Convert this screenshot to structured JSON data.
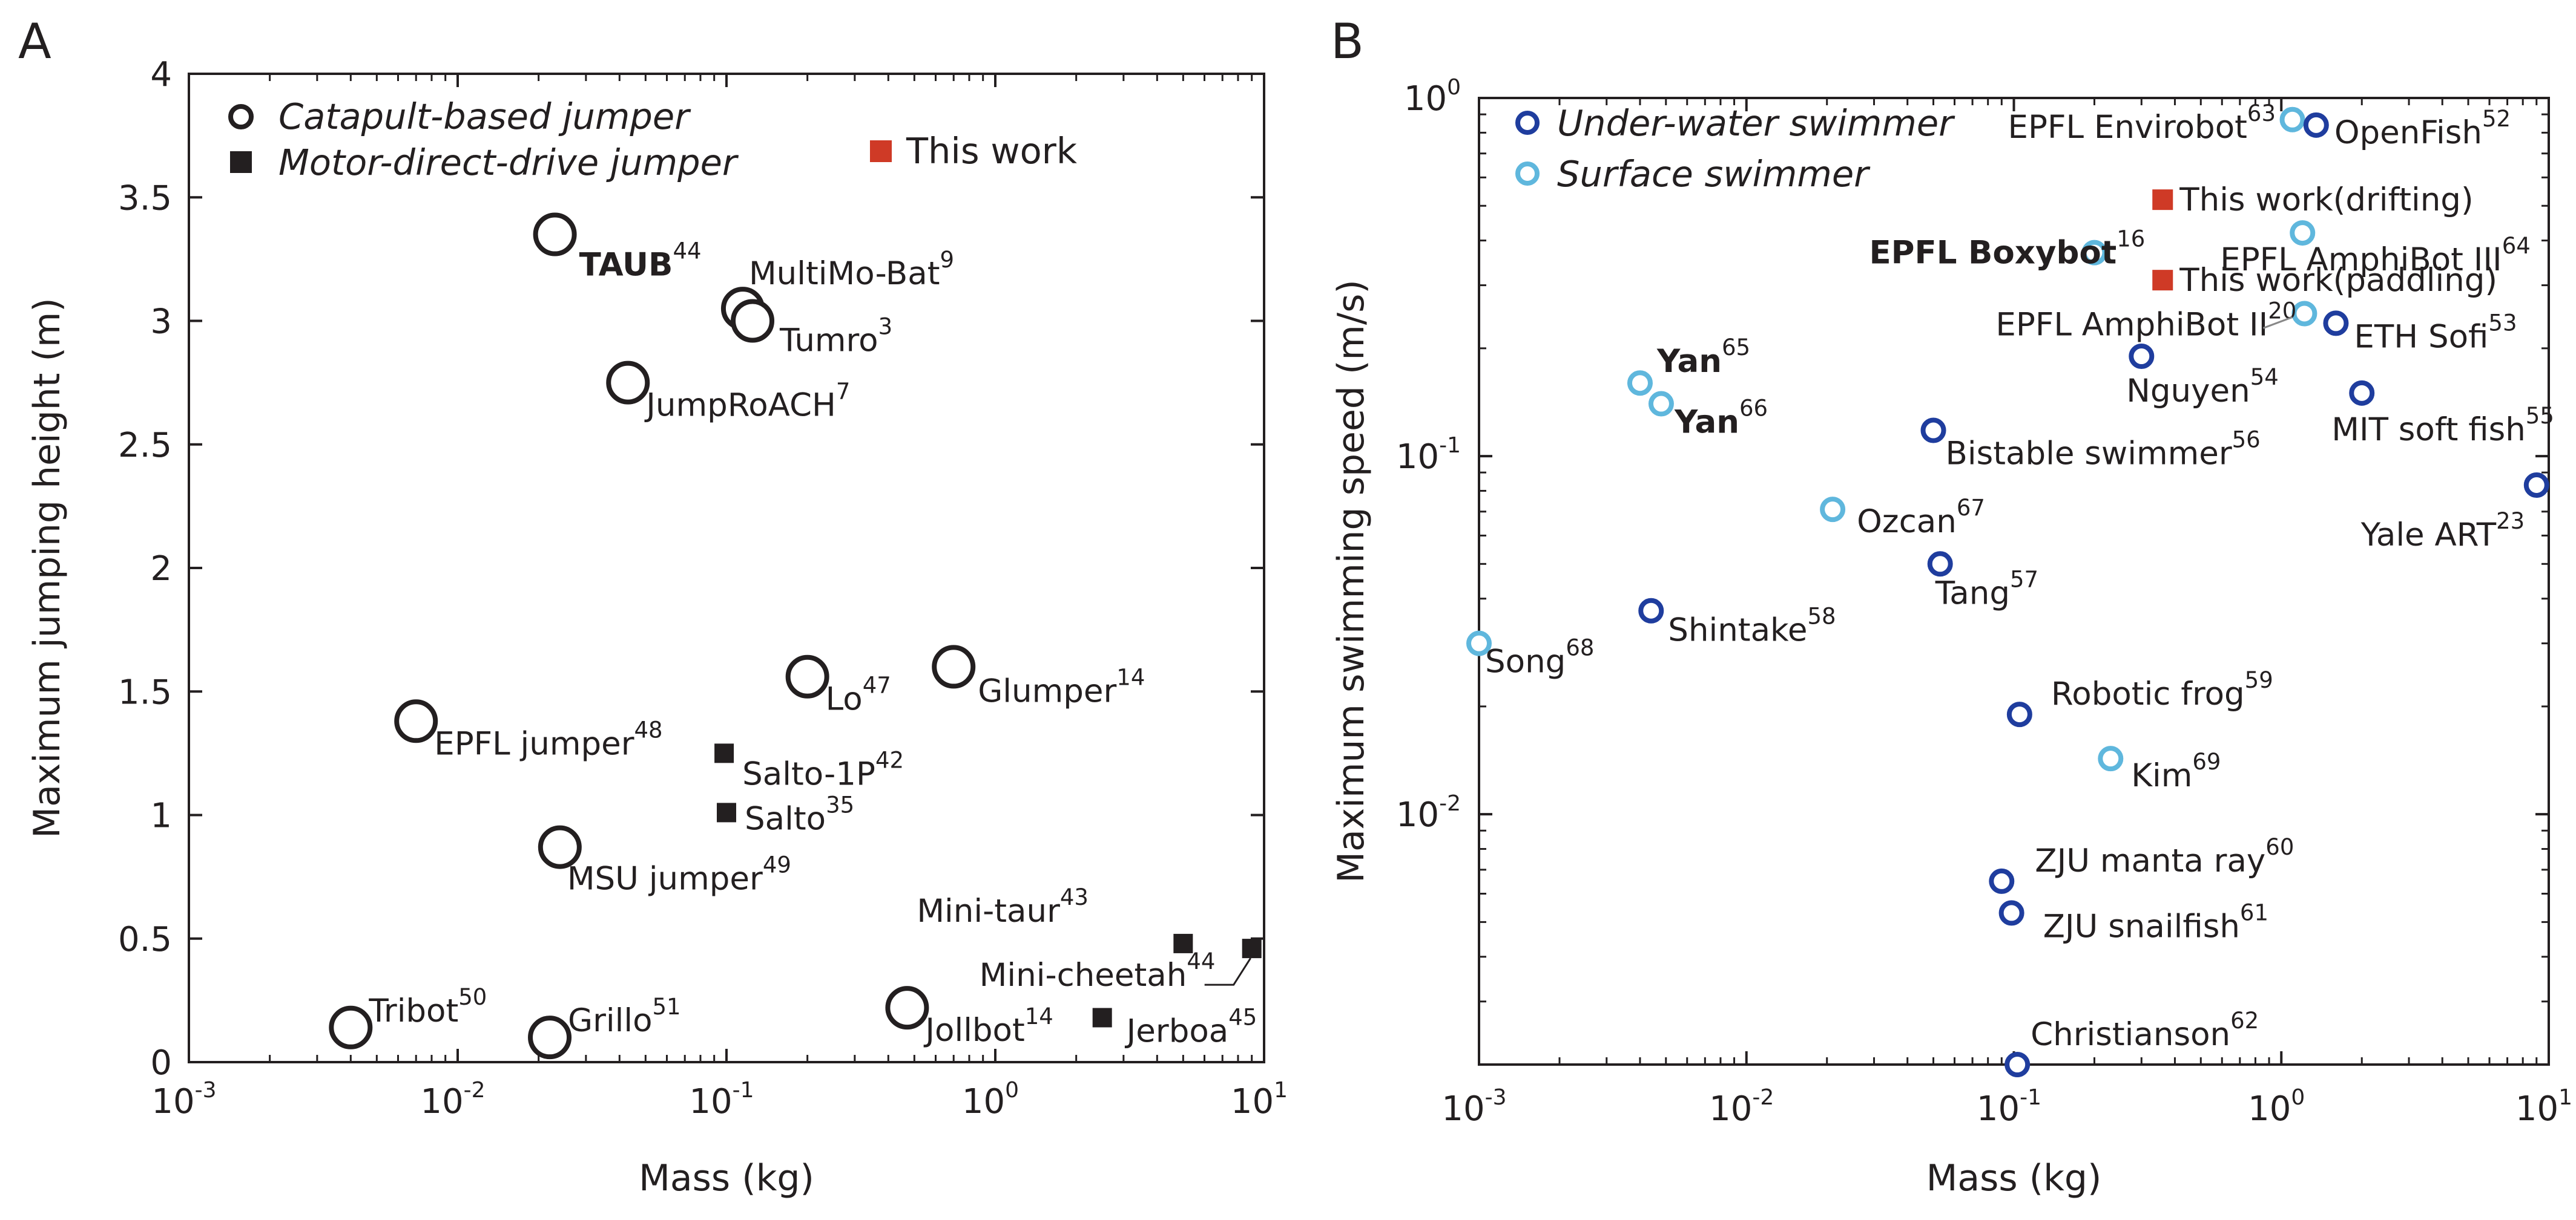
{
  "colors": {
    "axis": "#231f20",
    "catapult": "#231f20",
    "motor": "#231f20",
    "this_work": "#cf3a26",
    "underwater": "#1f3d9e",
    "surface": "#5fb7dd"
  },
  "chart_data": [
    {
      "panel": "A",
      "type": "scatter",
      "xscale": "log",
      "xlabel": "Mass (kg)",
      "ylabel": "Maximum jumping height (m)",
      "xlim": [
        0.001,
        10
      ],
      "ylim": [
        0,
        4
      ],
      "x_ticks": [
        {
          "value": 0.001,
          "base": "10",
          "exp": "-3"
        },
        {
          "value": 0.01,
          "base": "10",
          "exp": "-2"
        },
        {
          "value": 0.1,
          "base": "10",
          "exp": "-1"
        },
        {
          "value": 1,
          "base": "10",
          "exp": "0"
        },
        {
          "value": 10,
          "base": "10",
          "exp": "1"
        }
      ],
      "y_ticks": [
        {
          "value": 0,
          "label": "0"
        },
        {
          "value": 0.5,
          "label": "0.5"
        },
        {
          "value": 1,
          "label": "1"
        },
        {
          "value": 1.5,
          "label": "1.5"
        },
        {
          "value": 2,
          "label": "2"
        },
        {
          "value": 2.5,
          "label": "2.5"
        },
        {
          "value": 3,
          "label": "3"
        },
        {
          "value": 3.5,
          "label": "3.5"
        },
        {
          "value": 4,
          "label": "4"
        }
      ],
      "legend": [
        {
          "label": "Catapult-based jumper",
          "marker": "circle",
          "series": "catapult"
        },
        {
          "label": "Motor-direct-drive jumper",
          "marker": "square",
          "series": "motor"
        },
        {
          "label": "This work",
          "marker": "square",
          "series": "this_work"
        }
      ],
      "points": [
        {
          "name": "TAUB",
          "ref": "44",
          "x": 0.023,
          "y": 3.35,
          "series": "catapult",
          "bold": true
        },
        {
          "name": "MultiMo-Bat",
          "ref": "9",
          "x": 0.115,
          "y": 3.05,
          "series": "catapult"
        },
        {
          "name": "Tumro",
          "ref": "3",
          "x": 0.125,
          "y": 3.0,
          "series": "catapult"
        },
        {
          "name": "JumpRoACH",
          "ref": "7",
          "x": 0.043,
          "y": 2.75,
          "series": "catapult"
        },
        {
          "name": "Lo",
          "ref": "47",
          "x": 0.2,
          "y": 1.56,
          "series": "catapult"
        },
        {
          "name": "Glumper",
          "ref": "14",
          "x": 0.7,
          "y": 1.6,
          "series": "catapult"
        },
        {
          "name": "EPFL jumper",
          "ref": "48",
          "x": 0.007,
          "y": 1.38,
          "series": "catapult"
        },
        {
          "name": "MSU jumper",
          "ref": "49",
          "x": 0.024,
          "y": 0.87,
          "series": "catapult"
        },
        {
          "name": "Tribot",
          "ref": "50",
          "x": 0.004,
          "y": 0.14,
          "series": "catapult"
        },
        {
          "name": "Grillo",
          "ref": "51",
          "x": 0.022,
          "y": 0.1,
          "series": "catapult"
        },
        {
          "name": "Jollbot",
          "ref": "14",
          "x": 0.47,
          "y": 0.22,
          "series": "catapult"
        },
        {
          "name": "Salto-1P",
          "ref": "42",
          "x": 0.098,
          "y": 1.25,
          "series": "motor"
        },
        {
          "name": "Salto",
          "ref": "35",
          "x": 0.1,
          "y": 1.01,
          "series": "motor"
        },
        {
          "name": "Mini-taur",
          "ref": "43",
          "x": 5.0,
          "y": 0.48,
          "series": "motor"
        },
        {
          "name": "Mini-cheetah",
          "ref": "44",
          "x": 9.0,
          "y": 0.46,
          "series": "motor"
        },
        {
          "name": "Jerboa",
          "ref": "45",
          "x": 2.5,
          "y": 0.18,
          "series": "motor"
        },
        {
          "name": "This work",
          "ref": "",
          "x": 0.4,
          "y": 3.7,
          "series": "this_work",
          "legend_only": true
        }
      ]
    },
    {
      "panel": "B",
      "type": "scatter",
      "xscale": "log",
      "yscale": "log",
      "xlabel": "Mass (kg)",
      "ylabel": "Maximum swimming speed (m/s)",
      "xlim": [
        0.001,
        10
      ],
      "ylim": [
        0.002,
        1
      ],
      "x_ticks": [
        {
          "value": 0.001,
          "base": "10",
          "exp": "-3"
        },
        {
          "value": 0.01,
          "base": "10",
          "exp": "-2"
        },
        {
          "value": 0.1,
          "base": "10",
          "exp": "-1"
        },
        {
          "value": 1,
          "base": "10",
          "exp": "0"
        },
        {
          "value": 10,
          "base": "10",
          "exp": "1"
        }
      ],
      "y_ticks": [
        {
          "value": 0.01,
          "base": "10",
          "exp": "-2"
        },
        {
          "value": 0.1,
          "base": "10",
          "exp": "-1"
        },
        {
          "value": 1,
          "base": "10",
          "exp": "0"
        }
      ],
      "legend": [
        {
          "label": "Under-water swimmer",
          "marker": "circle",
          "series": "underwater"
        },
        {
          "label": "Surface swimmer",
          "marker": "circle",
          "series": "surface"
        }
      ],
      "points": [
        {
          "name": "EPFL Envirobot",
          "ref": "63",
          "x": 1.1,
          "y": 0.87,
          "series": "surface"
        },
        {
          "name": "OpenFish",
          "ref": "52",
          "x": 1.35,
          "y": 0.84,
          "series": "underwater"
        },
        {
          "name": "This work(drifting)",
          "ref": "",
          "x": 0.36,
          "y": 0.52,
          "series": "this_work"
        },
        {
          "name": "EPFL AmphiBot III",
          "ref": "64",
          "x": 1.2,
          "y": 0.42,
          "series": "surface"
        },
        {
          "name": "EPFL Boxybot",
          "ref": "16",
          "x": 0.2,
          "y": 0.37,
          "series": "surface",
          "bold": true
        },
        {
          "name": "This work(paddling)",
          "ref": "",
          "x": 0.36,
          "y": 0.31,
          "series": "this_work"
        },
        {
          "name": "EPFL AmphiBot II",
          "ref": "20",
          "x": 1.22,
          "y": 0.25,
          "series": "surface"
        },
        {
          "name": "ETH Sofi",
          "ref": "53",
          "x": 1.6,
          "y": 0.235,
          "series": "underwater"
        },
        {
          "name": "Nguyen",
          "ref": "54",
          "x": 0.3,
          "y": 0.19,
          "series": "underwater"
        },
        {
          "name": "Yan",
          "ref": "65",
          "x": 0.004,
          "y": 0.16,
          "series": "surface",
          "bold": true
        },
        {
          "name": "Yan",
          "ref": "66",
          "x": 0.0048,
          "y": 0.14,
          "series": "surface",
          "bold": true
        },
        {
          "name": "MIT soft fish",
          "ref": "55",
          "x": 2.0,
          "y": 0.15,
          "series": "underwater"
        },
        {
          "name": "Bistable swimmer",
          "ref": "56",
          "x": 0.05,
          "y": 0.118,
          "series": "underwater"
        },
        {
          "name": "Yale ART",
          "ref": "23",
          "x": 9.0,
          "y": 0.083,
          "series": "underwater"
        },
        {
          "name": "Ozcan",
          "ref": "67",
          "x": 0.021,
          "y": 0.071,
          "series": "surface"
        },
        {
          "name": "Tang",
          "ref": "57",
          "x": 0.053,
          "y": 0.05,
          "series": "underwater"
        },
        {
          "name": "Shintake",
          "ref": "58",
          "x": 0.0044,
          "y": 0.037,
          "series": "underwater"
        },
        {
          "name": "Song",
          "ref": "68",
          "x": 0.001,
          "y": 0.03,
          "series": "surface"
        },
        {
          "name": "Robotic frog",
          "ref": "59",
          "x": 0.105,
          "y": 0.019,
          "series": "underwater"
        },
        {
          "name": "Kim",
          "ref": "69",
          "x": 0.23,
          "y": 0.0143,
          "series": "surface"
        },
        {
          "name": "ZJU manta ray",
          "ref": "60",
          "x": 0.09,
          "y": 0.0065,
          "series": "underwater"
        },
        {
          "name": "ZJU snailfish",
          "ref": "61",
          "x": 0.098,
          "y": 0.0053,
          "series": "underwater"
        },
        {
          "name": "Christianson",
          "ref": "62",
          "x": 0.103,
          "y": 0.002,
          "series": "underwater"
        }
      ]
    }
  ]
}
